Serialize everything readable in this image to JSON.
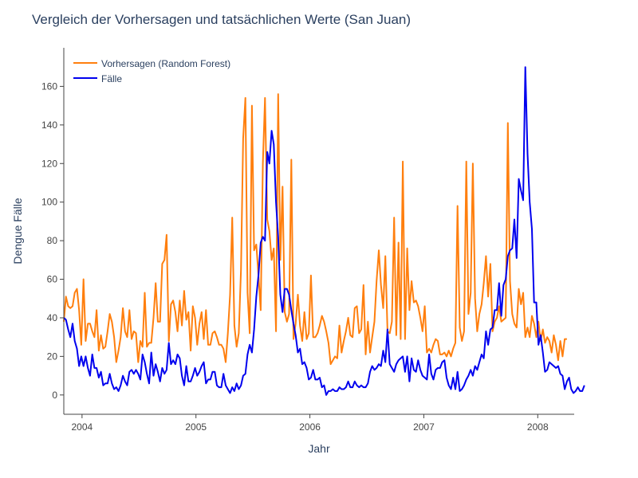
{
  "chart_data": {
    "type": "line",
    "title": "Vergleich der Vorhersagen und tatsächlichen Werte (San Juan)",
    "xlabel": "Jahr",
    "ylabel": "Dengue Fälle",
    "xlim": [
      2003.84,
      2008.32
    ],
    "ylim": [
      -10,
      180
    ],
    "x_ticks": [
      2004,
      2005,
      2006,
      2007,
      2008
    ],
    "x_tick_labels": [
      "2004",
      "2005",
      "2006",
      "2007",
      "2008"
    ],
    "y_ticks": [
      0,
      20,
      40,
      60,
      80,
      100,
      120,
      140,
      160
    ],
    "y_tick_labels": [
      "0",
      "20",
      "40",
      "60",
      "80",
      "100",
      "120",
      "140",
      "160"
    ],
    "grid": false,
    "legend_position": "top-left",
    "x_start": 2003.84,
    "x_step_years": 0.0192,
    "series": [
      {
        "name": "Vorhersagen (Random Forest)",
        "color": "#ff7f0e",
        "values": [
          38,
          51,
          46,
          45,
          46,
          53,
          55,
          44,
          26,
          60,
          28,
          37,
          37,
          33,
          30,
          44,
          23,
          31,
          24,
          25,
          33,
          42,
          38,
          30,
          17,
          23,
          30,
          45,
          33,
          30,
          44,
          29,
          33,
          32,
          17,
          28,
          25,
          53,
          25,
          27,
          27,
          40,
          58,
          38,
          38,
          68,
          70,
          83,
          28,
          47,
          49,
          43,
          33,
          49,
          36,
          54,
          39,
          43,
          23,
          46,
          40,
          26,
          37,
          43,
          29,
          44,
          26,
          26,
          32,
          33,
          30,
          26,
          26,
          24,
          17,
          32,
          52,
          92,
          36,
          25,
          32,
          65,
          133,
          154,
          53,
          32,
          150,
          75,
          78,
          62,
          44,
          120,
          154,
          91,
          85,
          70,
          76,
          33,
          156,
          70,
          108,
          43,
          38,
          42,
          122,
          29,
          37,
          52,
          36,
          28,
          43,
          29,
          32,
          62,
          30,
          30,
          32,
          36,
          41,
          38,
          33,
          27,
          16,
          18,
          20,
          19,
          36,
          22,
          28,
          33,
          40,
          31,
          30,
          45,
          46,
          32,
          34,
          57,
          21,
          38,
          22,
          30,
          38,
          59,
          75,
          57,
          45,
          72,
          33,
          32,
          38,
          92,
          31,
          79,
          29,
          121,
          29,
          76,
          44,
          59,
          48,
          49,
          46,
          40,
          33,
          46,
          22,
          24,
          22,
          26,
          29,
          28,
          21,
          21,
          22,
          20,
          23,
          20,
          24,
          27,
          98,
          35,
          28,
          33,
          121,
          42,
          53,
          120,
          50,
          33,
          42,
          47,
          58,
          72,
          51,
          68,
          33,
          38,
          40,
          46,
          38,
          39,
          40,
          141,
          59,
          42,
          37,
          35,
          55,
          47,
          53,
          30,
          35,
          30,
          41,
          37,
          30,
          38,
          28,
          34,
          27,
          30,
          28,
          22,
          31,
          26,
          18,
          28,
          20,
          29,
          29
        ]
      },
      {
        "name": "Fälle",
        "color": "#0000ee",
        "values": [
          40,
          39,
          34,
          30,
          37,
          28,
          24,
          15,
          20,
          15,
          20,
          14,
          10,
          21,
          14,
          14,
          9,
          12,
          5,
          6,
          6,
          11,
          6,
          3,
          4,
          2,
          5,
          10,
          7,
          5,
          12,
          13,
          11,
          13,
          11,
          8,
          21,
          17,
          11,
          6,
          22,
          10,
          16,
          12,
          7,
          14,
          11,
          13,
          27,
          16,
          18,
          16,
          21,
          19,
          10,
          5,
          15,
          7,
          7,
          10,
          14,
          10,
          12,
          15,
          17,
          6,
          8,
          8,
          12,
          12,
          5,
          4,
          4,
          11,
          5,
          3,
          1,
          4,
          2,
          6,
          3,
          5,
          10,
          11,
          21,
          26,
          22,
          34,
          51,
          62,
          79,
          82,
          80,
          126,
          120,
          137,
          130,
          100,
          82,
          52,
          43,
          55,
          55,
          52,
          44,
          37,
          31,
          22,
          24,
          16,
          17,
          14,
          8,
          9,
          13,
          8,
          8,
          9,
          4,
          5,
          0,
          2,
          2,
          3,
          2,
          2,
          4,
          3,
          3,
          4,
          7,
          4,
          4,
          7,
          5,
          4,
          5,
          4,
          4,
          6,
          12,
          15,
          13,
          14,
          16,
          15,
          23,
          17,
          34,
          16,
          14,
          12,
          16,
          18,
          19,
          20,
          12,
          20,
          7,
          19,
          13,
          12,
          18,
          13,
          10,
          9,
          8,
          21,
          11,
          8,
          13,
          14,
          14,
          17,
          18,
          9,
          5,
          3,
          9,
          3,
          12,
          2,
          3,
          5,
          8,
          10,
          13,
          10,
          15,
          13,
          17,
          21,
          19,
          33,
          26,
          34,
          35,
          44,
          44,
          58,
          41,
          57,
          60,
          72,
          75,
          76,
          91,
          71,
          112,
          106,
          101,
          170,
          125,
          100,
          86,
          48,
          48,
          26,
          31,
          22,
          12,
          13,
          17,
          16,
          15,
          14,
          15,
          11,
          10,
          3,
          7,
          9,
          3,
          1,
          2,
          4,
          2,
          2,
          5
        ]
      }
    ]
  }
}
